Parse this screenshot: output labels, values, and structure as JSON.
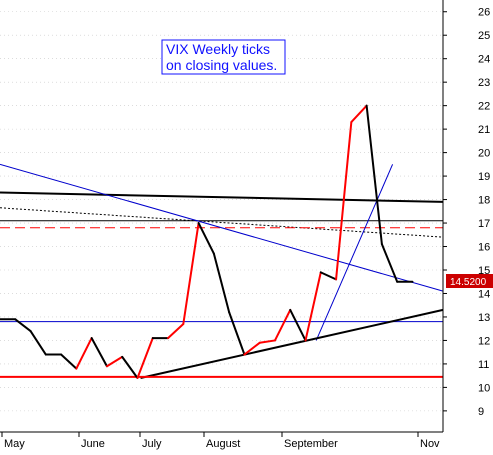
{
  "chart_data": {
    "type": "line",
    "title": "",
    "annotation_lines": [
      "VIX Weekly ticks",
      "on closing values."
    ],
    "xlabel": "",
    "ylabel": "",
    "x_month_labels": [
      "May",
      "June",
      "July",
      "August",
      "September",
      "Nov"
    ],
    "yticks": [
      9,
      10,
      11,
      12,
      13,
      14,
      15,
      16,
      17,
      18,
      19,
      20,
      21,
      22,
      23,
      24,
      25,
      26
    ],
    "ylim": [
      8.1,
      26.5
    ],
    "xlim": [
      0,
      29
    ],
    "price_label": "14.5200",
    "colors": {
      "up": "#ff0000",
      "down": "#000000",
      "trend_blue": "#0000cc",
      "support_red": "#ff0000",
      "grid": "#c8c8c8",
      "label_bg": "#cc0000"
    },
    "series": [
      {
        "x": [
          0,
          1,
          2,
          3,
          4,
          5,
          6,
          7,
          8,
          9,
          10,
          11,
          12,
          13,
          14,
          15,
          16,
          17,
          18,
          19,
          20,
          21,
          22,
          23,
          24,
          25,
          26,
          27
        ],
        "values": [
          12.9,
          12.9,
          12.4,
          11.4,
          11.4,
          10.8,
          12.1,
          10.9,
          11.3,
          10.4,
          12.1,
          12.1,
          12.7,
          17.0,
          15.7,
          13.2,
          11.4,
          11.9,
          12.0,
          13.3,
          12.0,
          14.9,
          14.6,
          21.3,
          22.0,
          16.1,
          14.5,
          14.5
        ]
      }
    ],
    "trendlines": [
      {
        "color": "#000000",
        "width": 2,
        "style": "solid",
        "points": [
          [
            0,
            18.3
          ],
          [
            29,
            17.9
          ]
        ]
      },
      {
        "color": "#000000",
        "width": 1,
        "style": "solid",
        "points": [
          [
            0,
            17.1
          ],
          [
            29,
            17.1
          ]
        ]
      },
      {
        "color": "#000000",
        "width": 1,
        "style": "dotted",
        "points": [
          [
            0,
            17.65
          ],
          [
            29,
            16.4
          ]
        ]
      },
      {
        "color": "#ff0000",
        "width": 1,
        "style": "dashed",
        "points": [
          [
            0,
            16.8
          ],
          [
            29,
            16.8
          ]
        ]
      },
      {
        "color": "#0000cc",
        "width": 1,
        "style": "solid",
        "points": [
          [
            0,
            19.5
          ],
          [
            29,
            14.1
          ]
        ]
      },
      {
        "color": "#0000cc",
        "width": 1,
        "style": "solid",
        "points": [
          [
            0,
            12.8
          ],
          [
            29,
            12.8
          ]
        ]
      },
      {
        "color": "#0000cc",
        "width": 1,
        "style": "solid",
        "points": [
          [
            20.7,
            12.0
          ],
          [
            25.7,
            19.5
          ]
        ]
      },
      {
        "color": "#000000",
        "width": 2,
        "style": "solid",
        "points": [
          [
            9.2,
            10.4
          ],
          [
            29,
            13.3
          ]
        ]
      },
      {
        "color": "#ff0000",
        "width": 2,
        "style": "solid",
        "points": [
          [
            0,
            10.45
          ],
          [
            29,
            10.45
          ]
        ]
      }
    ]
  }
}
